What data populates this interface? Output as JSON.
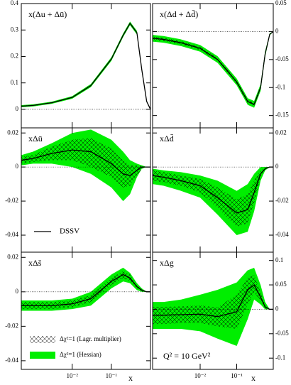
{
  "chart_data": [
    {
      "type": "line",
      "title": "x(Δu + Δū)",
      "log_x": true,
      "xlim": [
        0.0005,
        1
      ],
      "xticks": [
        0.01,
        0.1
      ],
      "ylim": [
        -0.07,
        0.4
      ],
      "yticks": [
        0,
        0.1,
        0.2,
        0.3,
        0.4
      ],
      "ytick_side": "left",
      "x": [
        0.0005,
        0.001,
        0.003,
        0.01,
        0.03,
        0.1,
        0.2,
        0.3,
        0.45,
        0.6,
        0.8,
        1
      ],
      "series": [
        {
          "color": "#00ee00",
          "lower": [
            0.008,
            0.011,
            0.021,
            0.04,
            0.084,
            0.183,
            0.273,
            0.318,
            0.283,
            0.144,
            0.027,
            0
          ],
          "upper": [
            0.016,
            0.019,
            0.029,
            0.05,
            0.096,
            0.197,
            0.287,
            0.332,
            0.297,
            0.156,
            0.033,
            0
          ]
        },
        {
          "color": "#000000",
          "pattern": "crosshatch",
          "lower": [
            0.01,
            0.013,
            0.023,
            0.043,
            0.087,
            0.187,
            0.277,
            0.322,
            0.287,
            0.147,
            0.029,
            0
          ],
          "upper": [
            0.014,
            0.017,
            0.027,
            0.047,
            0.093,
            0.193,
            0.283,
            0.328,
            0.293,
            0.153,
            0.031,
            0
          ]
        },
        {
          "color": "#000000",
          "values": [
            0.012,
            0.015,
            0.025,
            0.045,
            0.09,
            0.19,
            0.28,
            0.325,
            0.29,
            0.15,
            0.03,
            0
          ]
        }
      ]
    },
    {
      "type": "line",
      "title": "x(Δd + Δd̄)",
      "log_x": true,
      "xlim": [
        0.0005,
        1
      ],
      "xticks": [
        0.01,
        0.1
      ],
      "ylim": [
        -0.172,
        0.05
      ],
      "yticks": [
        0.05,
        0,
        -0.05,
        -0.1,
        -0.15
      ],
      "ytick_side": "right",
      "x": [
        0.0005,
        0.001,
        0.003,
        0.01,
        0.03,
        0.1,
        0.2,
        0.3,
        0.45,
        0.6,
        0.8,
        1
      ],
      "series": [
        {
          "color": "#00ee00",
          "lower": [
            -0.018,
            -0.02,
            -0.026,
            -0.036,
            -0.056,
            -0.096,
            -0.131,
            -0.136,
            -0.106,
            -0.045,
            -0.007,
            0
          ],
          "upper": [
            -0.006,
            -0.008,
            -0.014,
            -0.024,
            -0.044,
            -0.084,
            -0.119,
            -0.124,
            -0.094,
            -0.035,
            -0.003,
            0
          ]
        },
        {
          "color": "#000000",
          "pattern": "crosshatch",
          "lower": [
            -0.015,
            -0.017,
            -0.023,
            -0.033,
            -0.053,
            -0.093,
            -0.128,
            -0.133,
            -0.103,
            -0.042,
            -0.006,
            0
          ],
          "upper": [
            -0.009,
            -0.011,
            -0.017,
            -0.027,
            -0.047,
            -0.087,
            -0.122,
            -0.127,
            -0.097,
            -0.038,
            -0.004,
            0
          ]
        },
        {
          "color": "#000000",
          "values": [
            -0.012,
            -0.014,
            -0.02,
            -0.03,
            -0.05,
            -0.09,
            -0.125,
            -0.13,
            -0.1,
            -0.04,
            -0.005,
            0
          ]
        }
      ]
    },
    {
      "type": "line",
      "title": "xΔū",
      "log_x": true,
      "xlim": [
        0.0005,
        1
      ],
      "xticks": [
        0.01,
        0.1
      ],
      "ylim": [
        -0.05,
        0.023
      ],
      "yticks": [
        0.02,
        0,
        -0.02,
        -0.04
      ],
      "ytick_side": "left",
      "legend": "lower left",
      "x": [
        0.0005,
        0.001,
        0.003,
        0.01,
        0.03,
        0.1,
        0.2,
        0.3,
        0.45,
        0.6,
        0.8,
        1
      ],
      "series": [
        {
          "color": "#00ee00",
          "lower": [
            0.001,
            0.002,
            0.002,
            0,
            -0.004,
            -0.012,
            -0.02,
            -0.016,
            -0.006,
            -0.001,
            0,
            0
          ],
          "upper": [
            0.007,
            0.009,
            0.014,
            0.02,
            0.022,
            0.016,
            0.009,
            0.004,
            0.002,
            0.001,
            0,
            0
          ]
        },
        {
          "color": "#000000",
          "pattern": "crosshatch",
          "lower": [
            0.002,
            0.003,
            0.004,
            0.004,
            0,
            -0.006,
            -0.012,
            -0.011,
            -0.005,
            -0.001,
            0,
            0
          ],
          "upper": [
            0.006,
            0.007,
            0.012,
            0.016,
            0.017,
            0.011,
            0.004,
            0.001,
            0.001,
            0.0005,
            0,
            0
          ]
        },
        {
          "name": "DSSV",
          "color": "#000000",
          "values": [
            0.004,
            0.005,
            0.008,
            0.01,
            0.009,
            0.002,
            -0.004,
            -0.005,
            -0.002,
            0,
            0,
            0
          ]
        }
      ]
    },
    {
      "type": "line",
      "title": "xΔd̄",
      "log_x": true,
      "xlim": [
        0.0005,
        1
      ],
      "xticks": [
        0.01,
        0.1
      ],
      "ylim": [
        -0.05,
        0.023
      ],
      "yticks": [
        0.02,
        0,
        -0.02,
        -0.04
      ],
      "ytick_side": "right",
      "x": [
        0.0005,
        0.001,
        0.003,
        0.01,
        0.03,
        0.1,
        0.2,
        0.3,
        0.45,
        0.6,
        0.8,
        1
      ],
      "series": [
        {
          "color": "#00ee00",
          "lower": [
            -0.01,
            -0.011,
            -0.014,
            -0.018,
            -0.028,
            -0.04,
            -0.038,
            -0.026,
            -0.008,
            -0.002,
            0,
            0
          ],
          "upper": [
            -0.001,
            -0.002,
            -0.003,
            -0.005,
            -0.008,
            -0.014,
            -0.01,
            -0.004,
            0,
            0,
            0,
            0
          ]
        },
        {
          "color": "#000000",
          "pattern": "crosshatch",
          "lower": [
            -0.008,
            -0.009,
            -0.011,
            -0.015,
            -0.024,
            -0.035,
            -0.033,
            -0.021,
            -0.006,
            -0.0015,
            0,
            0
          ],
          "upper": [
            -0.002,
            -0.003,
            -0.005,
            -0.007,
            -0.012,
            -0.019,
            -0.016,
            -0.008,
            -0.002,
            0,
            0,
            0
          ]
        },
        {
          "color": "#000000",
          "values": [
            -0.005,
            -0.006,
            -0.008,
            -0.011,
            -0.018,
            -0.027,
            -0.025,
            -0.015,
            -0.004,
            -0.001,
            0,
            0
          ]
        }
      ]
    },
    {
      "type": "line",
      "title": "xΔs̄",
      "log_x": true,
      "xlim": [
        0.0005,
        1
      ],
      "xticks": [
        {
          "value": 0.01,
          "label": "10⁻²"
        },
        {
          "value": 0.1,
          "label": "10⁻¹"
        }
      ],
      "xlabel": "x",
      "ylim": [
        -0.045,
        0.023
      ],
      "yticks": [
        0.02,
        0,
        -0.02,
        -0.04
      ],
      "ytick_side": "left",
      "legend": "lower left",
      "x": [
        0.0005,
        0.001,
        0.003,
        0.01,
        0.03,
        0.1,
        0.2,
        0.3,
        0.45,
        0.6,
        0.8,
        1
      ],
      "series": [
        {
          "name": "Δχ²=1 (Hessian)",
          "color": "#00ee00",
          "lower": [
            -0.011,
            -0.011,
            -0.011,
            -0.01,
            -0.008,
            0.002,
            0.006,
            0.005,
            0.001,
            0,
            0,
            0
          ],
          "upper": [
            -0.005,
            -0.005,
            -0.005,
            -0.004,
            0,
            0.01,
            0.014,
            0.011,
            0.005,
            0.002,
            0,
            0
          ]
        },
        {
          "name": "Δχ²=1 (Lagr. multiplier)",
          "color": "#000000",
          "pattern": "crosshatch",
          "lower": [
            -0.01,
            -0.01,
            -0.01,
            -0.009,
            -0.006,
            0.004,
            0.008,
            0.006,
            0.002,
            0.0005,
            0,
            0
          ],
          "upper": [
            -0.006,
            -0.006,
            -0.006,
            -0.005,
            -0.002,
            0.008,
            0.012,
            0.01,
            0.004,
            0.0015,
            0,
            0
          ]
        },
        {
          "color": "#000000",
          "values": [
            -0.008,
            -0.008,
            -0.008,
            -0.007,
            -0.004,
            0.006,
            0.01,
            0.008,
            0.003,
            0.001,
            0,
            0
          ]
        }
      ]
    },
    {
      "type": "line",
      "title": "xΔg",
      "log_x": true,
      "xlim": [
        0.0005,
        1
      ],
      "xticks": [
        {
          "value": 0.01,
          "label": "10⁻²"
        },
        {
          "value": 0.1,
          "label": "10⁻¹"
        }
      ],
      "xlabel": "x",
      "ylim": [
        -0.123,
        0.117
      ],
      "yticks": [
        0.1,
        0.05,
        0,
        -0.05,
        -0.1
      ],
      "ytick_side": "right",
      "annotation": "Q² = 10 GeV²",
      "x": [
        0.0005,
        0.001,
        0.003,
        0.01,
        0.03,
        0.1,
        0.2,
        0.3,
        0.45,
        0.6,
        0.8,
        1
      ],
      "series": [
        {
          "color": "#00ee00",
          "lower": [
            -0.04,
            -0.04,
            -0.04,
            -0.045,
            -0.06,
            -0.075,
            -0.02,
            0.02,
            0.01,
            0,
            0,
            0
          ],
          "upper": [
            0.015,
            0.015,
            0.02,
            0.03,
            0.04,
            0.055,
            0.08,
            0.085,
            0.05,
            0.015,
            0,
            0
          ]
        },
        {
          "color": "#000000",
          "pattern": "crosshatch",
          "lower": [
            -0.03,
            -0.03,
            -0.028,
            -0.028,
            -0.035,
            -0.04,
            0.01,
            0.035,
            0.018,
            0.002,
            0,
            0
          ],
          "upper": [
            0.005,
            0.005,
            0.006,
            0.008,
            0.004,
            0.03,
            0.065,
            0.07,
            0.035,
            0.009,
            0,
            0
          ]
        },
        {
          "color": "#000000",
          "values": [
            -0.012,
            -0.012,
            -0.011,
            -0.01,
            -0.015,
            -0.005,
            0.04,
            0.05,
            0.025,
            0.005,
            0,
            0
          ]
        }
      ]
    }
  ]
}
